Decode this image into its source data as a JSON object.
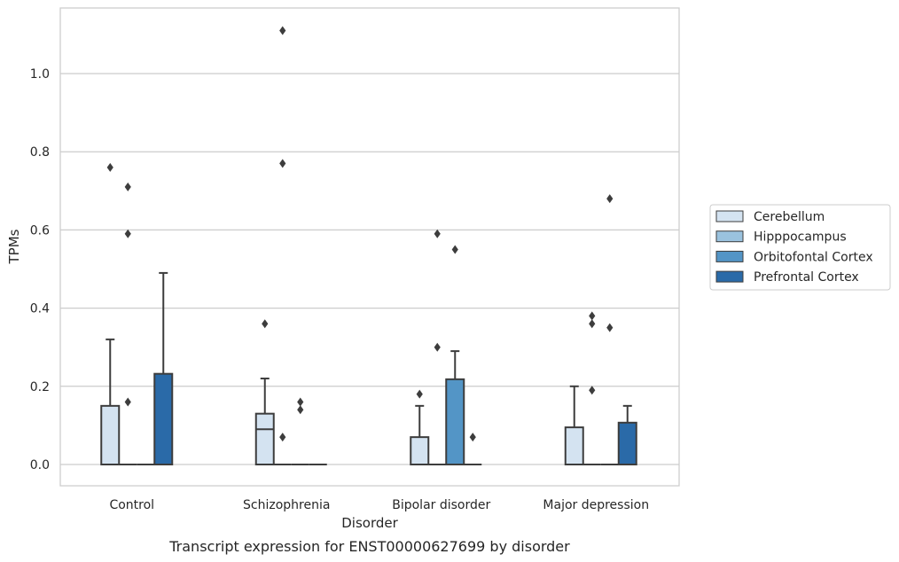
{
  "chart_data": {
    "type": "box",
    "xlabel": "Disorder",
    "ylabel": "TPMs",
    "caption": "Transcript expression for ENST00000627699 by disorder",
    "ylim": [
      -0.055,
      1.17
    ],
    "yticks": [
      "0.0",
      "0.2",
      "0.4",
      "0.6",
      "0.8",
      "1.0"
    ],
    "grid": true,
    "legend_position": "right",
    "categories": [
      "Control",
      "Schizophrenia",
      "Bipolar disorder",
      "Major depression"
    ],
    "series": [
      {
        "name": "Cerebellum",
        "color": "#d4e3f1",
        "boxes": [
          {
            "q1": 0,
            "median": 0,
            "q3": 0.15,
            "whisker_low": 0,
            "whisker_high": 0.32,
            "outliers": [
              0.76
            ]
          },
          {
            "q1": 0,
            "median": 0.09,
            "q3": 0.13,
            "whisker_low": 0,
            "whisker_high": 0.22,
            "outliers": [
              0.36
            ]
          },
          {
            "q1": 0,
            "median": 0,
            "q3": 0.07,
            "whisker_low": 0,
            "whisker_high": 0.15,
            "outliers": [
              0.18
            ]
          },
          {
            "q1": 0,
            "median": 0,
            "q3": 0.095,
            "whisker_low": 0,
            "whisker_high": 0.2,
            "outliers": []
          }
        ]
      },
      {
        "name": "Hipppocampus",
        "color": "#9ac2de",
        "boxes": [
          {
            "q1": 0,
            "median": 0,
            "q3": 0,
            "whisker_low": 0,
            "whisker_high": 0,
            "outliers": [
              0.16,
              0.59,
              0.71
            ]
          },
          {
            "q1": 0,
            "median": 0,
            "q3": 0,
            "whisker_low": 0,
            "whisker_high": 0,
            "outliers": [
              0.07,
              0.77,
              1.11
            ]
          },
          {
            "q1": 0,
            "median": 0,
            "q3": 0,
            "whisker_low": 0,
            "whisker_high": 0,
            "outliers": [
              0.3,
              0.59
            ]
          },
          {
            "q1": 0,
            "median": 0,
            "q3": 0,
            "whisker_low": 0,
            "whisker_high": 0,
            "outliers": [
              0.19,
              0.36,
              0.38
            ]
          }
        ]
      },
      {
        "name": "Orbitofontal Cortex",
        "color": "#5395c6",
        "boxes": [
          {
            "q1": 0,
            "median": 0,
            "q3": 0,
            "whisker_low": 0,
            "whisker_high": 0,
            "outliers": []
          },
          {
            "q1": 0,
            "median": 0,
            "q3": 0,
            "whisker_low": 0,
            "whisker_high": 0,
            "outliers": [
              0.14,
              0.16
            ]
          },
          {
            "q1": 0,
            "median": 0,
            "q3": 0.218,
            "whisker_low": 0,
            "whisker_high": 0.29,
            "outliers": [
              0.55
            ]
          },
          {
            "q1": 0,
            "median": 0,
            "q3": 0,
            "whisker_low": 0,
            "whisker_high": 0,
            "outliers": [
              0.35,
              0.68
            ]
          }
        ]
      },
      {
        "name": "Prefrontal Cortex",
        "color": "#2a6aa8",
        "boxes": [
          {
            "q1": 0,
            "median": 0,
            "q3": 0.232,
            "whisker_low": 0,
            "whisker_high": 0.49,
            "outliers": []
          },
          {
            "q1": 0,
            "median": 0,
            "q3": 0,
            "whisker_low": 0,
            "whisker_high": 0,
            "outliers": []
          },
          {
            "q1": 0,
            "median": 0,
            "q3": 0,
            "whisker_low": 0,
            "whisker_high": 0,
            "outliers": [
              0.07
            ]
          },
          {
            "q1": 0,
            "median": 0,
            "q3": 0.107,
            "whisker_low": 0,
            "whisker_high": 0.15,
            "outliers": []
          }
        ]
      }
    ]
  }
}
